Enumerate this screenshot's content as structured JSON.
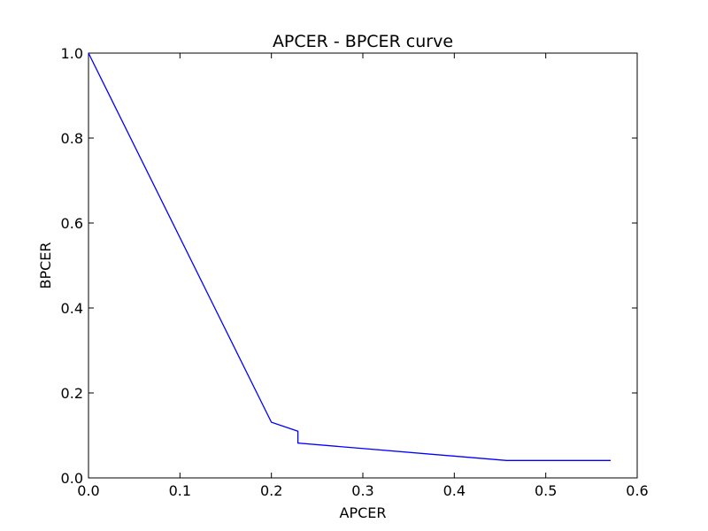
{
  "chart_data": {
    "type": "line",
    "title": "APCER - BPCER curve",
    "xlabel": "APCER",
    "ylabel": "BPCER",
    "xlim": [
      0.0,
      0.6
    ],
    "ylim": [
      0.0,
      1.0
    ],
    "xticks": [
      "0.0",
      "0.1",
      "0.2",
      "0.3",
      "0.4",
      "0.5",
      "0.6"
    ],
    "yticks": [
      "0.0",
      "0.2",
      "0.4",
      "0.6",
      "0.8",
      "1.0"
    ],
    "grid": false,
    "series": [
      {
        "color": "#0000ff",
        "x": [
          0.0,
          0.2,
          0.229,
          0.229,
          0.457,
          0.571
        ],
        "y": [
          1.0,
          0.131,
          0.11,
          0.082,
          0.041,
          0.041
        ]
      }
    ]
  }
}
